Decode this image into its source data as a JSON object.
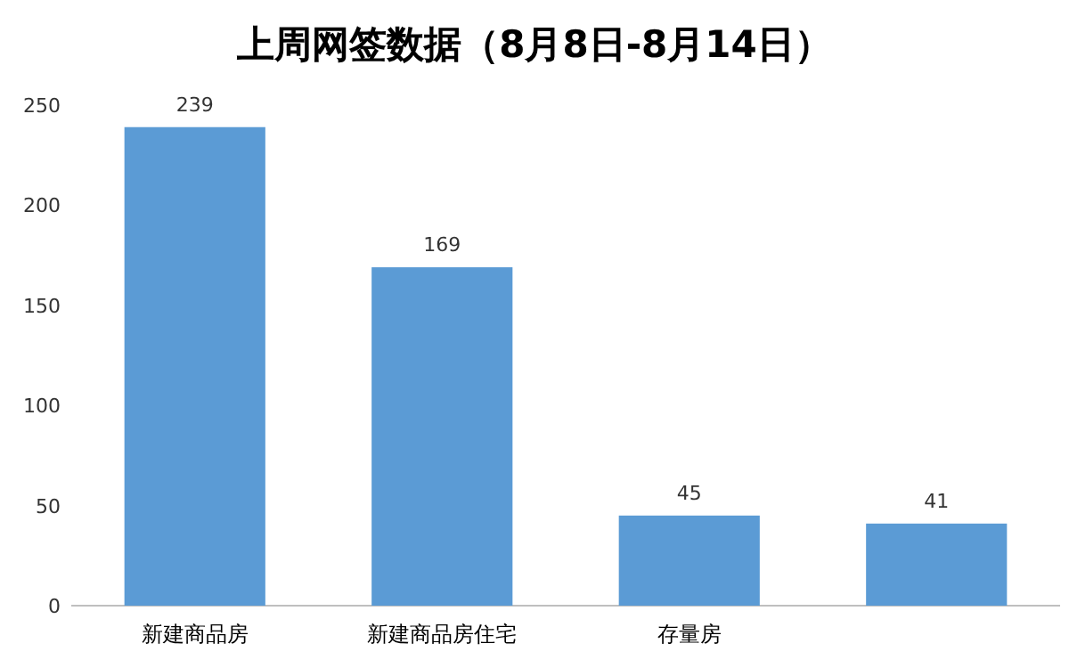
{
  "chart_data": {
    "type": "bar",
    "title": "上周网签数据（8月8日-8月14日）",
    "categories": [
      "新建商品房",
      "新建商品房住宅",
      "存量房",
      null
    ],
    "values": [
      239,
      169,
      45,
      41
    ],
    "color": "#5b9bd5",
    "ylim": [
      0,
      250
    ],
    "yticks": [
      0,
      50,
      100,
      150,
      200,
      250
    ],
    "grid": false,
    "legend": false,
    "data_labels": true
  }
}
